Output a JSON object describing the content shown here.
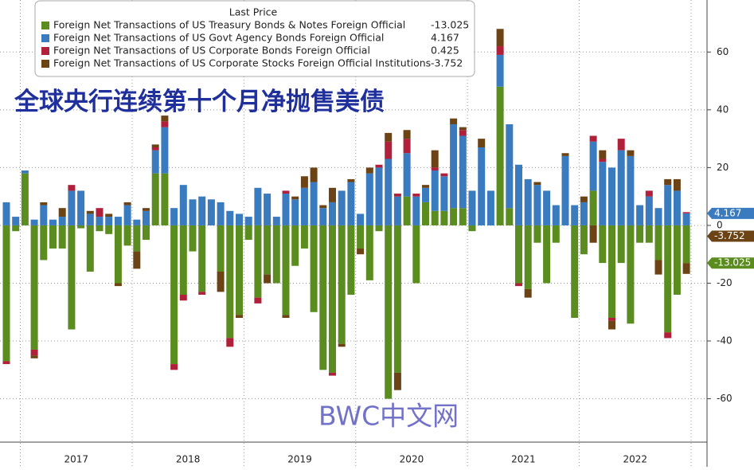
{
  "chart_data": {
    "type": "bar",
    "stacked": true,
    "title": "全球央行连续第十个月净抛售美债",
    "watermark": "BWC中文网",
    "legend_title": "Last Price",
    "year_labels": [
      "2017",
      "2018",
      "2019",
      "2020",
      "2021",
      "2022"
    ],
    "ylim": [
      -75,
      78
    ],
    "yticks": [
      -60,
      -40,
      -20,
      0,
      20,
      40,
      60
    ],
    "grid": true,
    "axis_side": "right",
    "series": [
      {
        "name": "Foreign Net Transactions of US Treasury Bonds & Notes Foreign Official",
        "color": "#5b8c1f",
        "values": [
          -47,
          -2,
          18,
          -43,
          -12,
          -8,
          -8,
          -36,
          -1,
          -16,
          -2,
          -3,
          -20,
          -7,
          -9,
          -5,
          18,
          18,
          -48,
          -24,
          -9,
          -23,
          0,
          -16,
          -39,
          -31,
          -5,
          -25,
          -17,
          -20,
          -31,
          -14,
          -8,
          -30,
          -50,
          -51,
          -41,
          -24,
          -8,
          -19,
          -2,
          -60,
          -51,
          10,
          -20,
          8,
          5,
          5,
          6,
          6,
          -2,
          0,
          0,
          48,
          6,
          -20,
          -22,
          -6,
          -20,
          -6,
          0,
          -32,
          -10,
          12,
          -13,
          -32,
          -13,
          -34,
          -6,
          -6,
          -12,
          -37,
          -24,
          -13.025
        ]
      },
      {
        "name": "Foreign Net Transactions of US Govt Agency Bonds Foreign Official",
        "color": "#3a7bbf",
        "values": [
          8,
          3,
          1,
          2,
          7,
          2,
          3,
          12,
          12,
          4,
          3,
          3,
          3,
          7,
          2,
          5,
          8,
          16,
          6,
          14,
          9,
          10,
          9,
          8,
          5,
          4,
          3,
          13,
          11,
          3,
          11,
          9,
          13,
          15,
          6,
          8,
          12,
          15,
          4,
          18,
          20,
          23,
          10,
          15,
          10,
          5,
          14,
          12,
          29,
          25,
          12,
          27,
          12,
          11,
          29,
          21,
          16,
          14,
          12,
          7,
          24,
          7,
          8,
          17,
          22,
          20,
          26,
          24,
          7,
          10,
          6,
          14,
          12,
          4.167
        ]
      },
      {
        "name": "Foreign Net Transactions of US Corporate Bonds Foreign Official",
        "color": "#b0203a",
        "values": [
          -1,
          0,
          0,
          -2,
          0,
          0,
          0,
          2,
          0,
          0,
          3,
          0,
          0,
          0,
          0,
          0,
          1,
          2,
          -2,
          -2,
          0,
          -1,
          0,
          0,
          -3,
          0,
          0,
          -2,
          0,
          0,
          1,
          0,
          0,
          0,
          0,
          -1,
          0,
          0,
          0,
          0,
          1,
          6,
          1,
          5,
          1,
          0,
          1,
          1,
          0,
          2,
          0,
          0,
          0,
          3,
          0,
          -1,
          0,
          0,
          0,
          0,
          0,
          0,
          0,
          2,
          1,
          -1,
          4,
          0,
          0,
          2,
          0,
          -2,
          0,
          0.425
        ]
      },
      {
        "name": "Foreign Net Transactions of US Corporate Stocks Foreign Official Institutions",
        "color": "#6b4314",
        "values": [
          0,
          0,
          0,
          -1,
          1,
          0,
          3,
          0,
          0,
          1,
          0,
          1,
          -1,
          1,
          -6,
          1,
          1,
          2,
          0,
          0,
          0,
          0,
          0,
          -7,
          0,
          -1,
          0,
          0,
          -3,
          0,
          -1,
          1,
          4,
          5,
          1,
          5,
          -1,
          1,
          -2,
          2,
          0,
          3,
          -6,
          3,
          0,
          1,
          6,
          0,
          2,
          1,
          0,
          3,
          0,
          6,
          0,
          0,
          -3,
          1,
          0,
          0,
          1,
          0,
          2,
          -6,
          3,
          -3,
          0,
          2,
          0,
          0,
          -5,
          2,
          4,
          -3.752
        ]
      }
    ]
  }
}
